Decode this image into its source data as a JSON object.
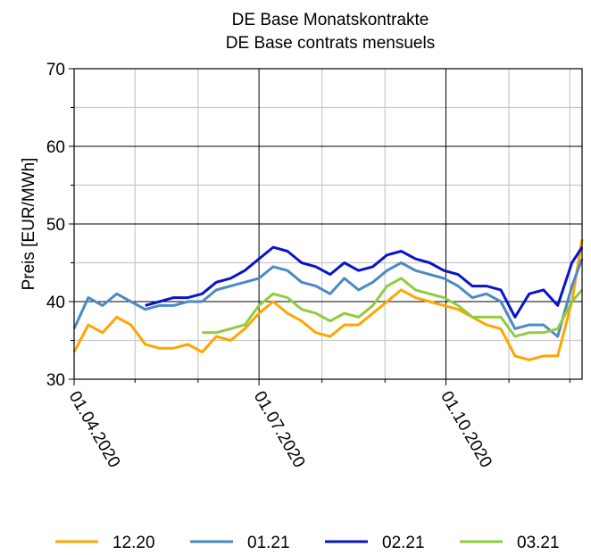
{
  "chart_data": {
    "type": "line",
    "title": [
      "DE Base Monatskontrakte",
      "DE Base contrats mensuels"
    ],
    "y_label": "Preis [EUR/MWh]",
    "x": [
      "2020-04-01",
      "2020-04-08",
      "2020-04-15",
      "2020-04-22",
      "2020-04-29",
      "2020-05-06",
      "2020-05-13",
      "2020-05-20",
      "2020-05-27",
      "2020-06-03",
      "2020-06-10",
      "2020-06-17",
      "2020-06-24",
      "2020-07-01",
      "2020-07-08",
      "2020-07-15",
      "2020-07-22",
      "2020-07-29",
      "2020-08-05",
      "2020-08-12",
      "2020-08-19",
      "2020-08-26",
      "2020-09-02",
      "2020-09-09",
      "2020-09-16",
      "2020-09-23",
      "2020-09-30",
      "2020-10-07",
      "2020-10-14",
      "2020-10-21",
      "2020-10-28",
      "2020-11-04",
      "2020-11-11",
      "2020-11-18",
      "2020-11-25",
      "2020-12-02",
      "2020-12-07"
    ],
    "series": [
      {
        "name": "12.20",
        "color": "#ffa500",
        "values": [
          33.5,
          37,
          36,
          38,
          37,
          34.5,
          34,
          34,
          34.5,
          33.5,
          35.5,
          35,
          36.5,
          38.5,
          40,
          38.5,
          37.5,
          36,
          35.5,
          37,
          37,
          38.5,
          40,
          41.5,
          40.5,
          40,
          39.5,
          39,
          38,
          37,
          36.5,
          33,
          32.5,
          33,
          33,
          40,
          48
        ]
      },
      {
        "name": "01.21",
        "color": "#4a8ac4",
        "values": [
          36.5,
          40.5,
          39.5,
          41,
          40,
          39,
          39.5,
          39.5,
          40,
          40,
          41.5,
          42,
          42.5,
          43,
          44.5,
          44,
          42.5,
          42,
          41,
          43,
          41.5,
          42.5,
          44,
          45,
          44,
          43.5,
          43,
          42,
          40.5,
          41,
          40,
          36.5,
          37,
          37,
          35.5,
          42,
          45.5
        ]
      },
      {
        "name": "02.21",
        "color": "#0a14c8",
        "values": [
          null,
          null,
          null,
          null,
          null,
          39.5,
          40,
          40.5,
          40.5,
          41,
          42.5,
          43,
          44,
          45.5,
          47,
          46.5,
          45,
          44.5,
          43.5,
          45,
          44,
          44.5,
          46,
          46.5,
          45.5,
          45,
          44,
          43.5,
          42,
          42,
          41.5,
          38,
          41,
          41.5,
          39.5,
          45,
          47
        ]
      },
      {
        "name": "03.21",
        "color": "#90cc40",
        "values": [
          null,
          null,
          null,
          null,
          null,
          null,
          null,
          null,
          null,
          36,
          36,
          36.5,
          37,
          39.5,
          41,
          40.5,
          39,
          38.5,
          37.5,
          38.5,
          38,
          39.5,
          42,
          43,
          41.5,
          41,
          40.5,
          39.5,
          38,
          38,
          38,
          35.5,
          36,
          36,
          36.5,
          40,
          41.5
        ]
      }
    ],
    "xlim": [
      "2020-04-01",
      "2020-12-07"
    ],
    "xticks": [
      {
        "value": "2020-04-01",
        "label": "01.04.2020"
      },
      {
        "value": "2020-07-01",
        "label": "01.07.2020"
      },
      {
        "value": "2020-10-01",
        "label": "01.10.2020"
      }
    ],
    "xminor": [
      "2020-05-01",
      "2020-06-01",
      "2020-08-01",
      "2020-09-01",
      "2020-11-01",
      "2020-12-01"
    ],
    "ylim": [
      30,
      70
    ],
    "yticks": [
      30,
      40,
      50,
      60,
      70
    ],
    "yminor": [
      35,
      45,
      55,
      65
    ],
    "grid": true,
    "legend": "bottom"
  }
}
